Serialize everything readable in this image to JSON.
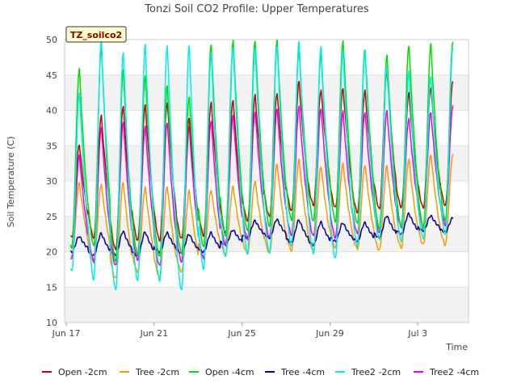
{
  "chart_data": {
    "type": "line",
    "title": "Tonzi Soil CO2 Profile: Upper Temperatures",
    "badge": "TZ_soilco2",
    "xlabel": "Time",
    "ylabel": "Soil Temperature (C)",
    "ylim": [
      10,
      50
    ],
    "yticks": [
      10,
      15,
      20,
      25,
      30,
      35,
      40,
      45,
      50
    ],
    "xlim": [
      0,
      18.2
    ],
    "xticks": [
      {
        "label": "Jun 17",
        "day": 0
      },
      {
        "label": "Jun 21",
        "day": 4
      },
      {
        "label": "Jun 25",
        "day": 8
      },
      {
        "label": "Jun 29",
        "day": 12
      },
      {
        "label": "Jul 3",
        "day": 16
      }
    ],
    "grid": "horizontal bands",
    "legend_position": "bottom",
    "x_unit": "days since Jun 17 (one cycle per day, peak near day fraction 0.6)",
    "series": [
      {
        "name": "Open -2cm",
        "color": "#cc0000",
        "daily_min": [
          22.0,
          22.0,
          20.3,
          21.6,
          21.6,
          21.8,
          22.3,
          22.6,
          24.4,
          25.0,
          25.8,
          26.6,
          26.2,
          25.6,
          26.0,
          26.3,
          26.2,
          26.5,
          27.6
        ],
        "daily_max": [
          35.2,
          39.2,
          40.7,
          40.7,
          41.1,
          38.9,
          41.1,
          41.5,
          42.1,
          42.5,
          44.0,
          42.9,
          43.1,
          42.8,
          45.5,
          42.4,
          43.3,
          44.0,
          44.0
        ]
      },
      {
        "name": "Tree -2cm",
        "color": "#ff9900",
        "daily_min": [
          19.3,
          18.5,
          16.2,
          17.2,
          16.4,
          17.2,
          19.3,
          19.6,
          19.8,
          19.8,
          20.2,
          20.2,
          20.6,
          20.4,
          20.2,
          20.6,
          21.0,
          21.0,
          21.0
        ],
        "daily_max": [
          29.7,
          29.6,
          29.8,
          29.1,
          29.3,
          28.6,
          28.8,
          29.2,
          30.0,
          32.4,
          33.0,
          32.1,
          32.4,
          32.3,
          32.1,
          33.1,
          33.7,
          33.7,
          34.0
        ]
      },
      {
        "name": "Open -4cm",
        "color": "#00dd00",
        "daily_min": [
          20.6,
          20.8,
          18.7,
          19.6,
          19.3,
          19.8,
          20.6,
          22.3,
          22.9,
          23.6,
          24.5,
          24.3,
          24.3,
          23.9,
          23.3,
          23.5,
          23.3,
          24.4,
          25.0
        ],
        "daily_max": [
          45.8,
          48.8,
          45.6,
          45.0,
          43.4,
          41.9,
          49.3,
          49.8,
          49.9,
          49.8,
          48.5,
          47.9,
          49.8,
          48.6,
          47.7,
          49.2,
          49.3,
          49.8,
          49.8
        ]
      },
      {
        "name": "Tree -4cm",
        "color": "#0000aa",
        "daily_min": [
          20.0,
          19.5,
          19.6,
          19.4,
          20.0,
          19.8,
          20.0,
          21.0,
          22.0,
          22.0,
          21.3,
          21.0,
          21.5,
          21.5,
          22.0,
          22.5,
          23.0,
          22.8,
          23.0
        ],
        "daily_max": [
          22.2,
          22.6,
          22.9,
          22.8,
          22.7,
          22.5,
          22.7,
          23.1,
          24.4,
          24.6,
          24.5,
          24.2,
          24.1,
          24.1,
          25.1,
          25.4,
          25.1,
          24.8,
          24.9
        ]
      },
      {
        "name": "Tree2 -2cm",
        "color": "#00eeee",
        "daily_min": [
          17.2,
          16.1,
          14.6,
          15.9,
          15.9,
          14.5,
          17.6,
          19.2,
          19.8,
          19.8,
          20.8,
          19.8,
          19.0,
          20.8,
          21.6,
          21.5,
          21.8,
          22.4,
          22.5
        ],
        "daily_max": [
          42.5,
          50.0,
          48.3,
          49.2,
          49.2,
          49.1,
          48.1,
          49.0,
          48.7,
          49.2,
          49.6,
          49.1,
          48.4,
          48.2,
          46.2,
          45.4,
          44.9,
          48.7,
          36.0
        ]
      },
      {
        "name": "Tree2 -4cm",
        "color": "#ee00ee",
        "daily_min": [
          19.0,
          18.7,
          18.0,
          18.9,
          18.0,
          18.6,
          19.0,
          21.0,
          21.8,
          22.0,
          22.4,
          22.2,
          22.0,
          22.6,
          22.7,
          23.5,
          23.6,
          23.8,
          24.0
        ],
        "daily_max": [
          33.6,
          37.6,
          38.3,
          37.7,
          38.3,
          37.6,
          38.6,
          39.2,
          39.8,
          40.2,
          40.5,
          40.3,
          39.8,
          39.8,
          39.9,
          38.9,
          39.7,
          40.6,
          40.4
        ]
      }
    ]
  }
}
